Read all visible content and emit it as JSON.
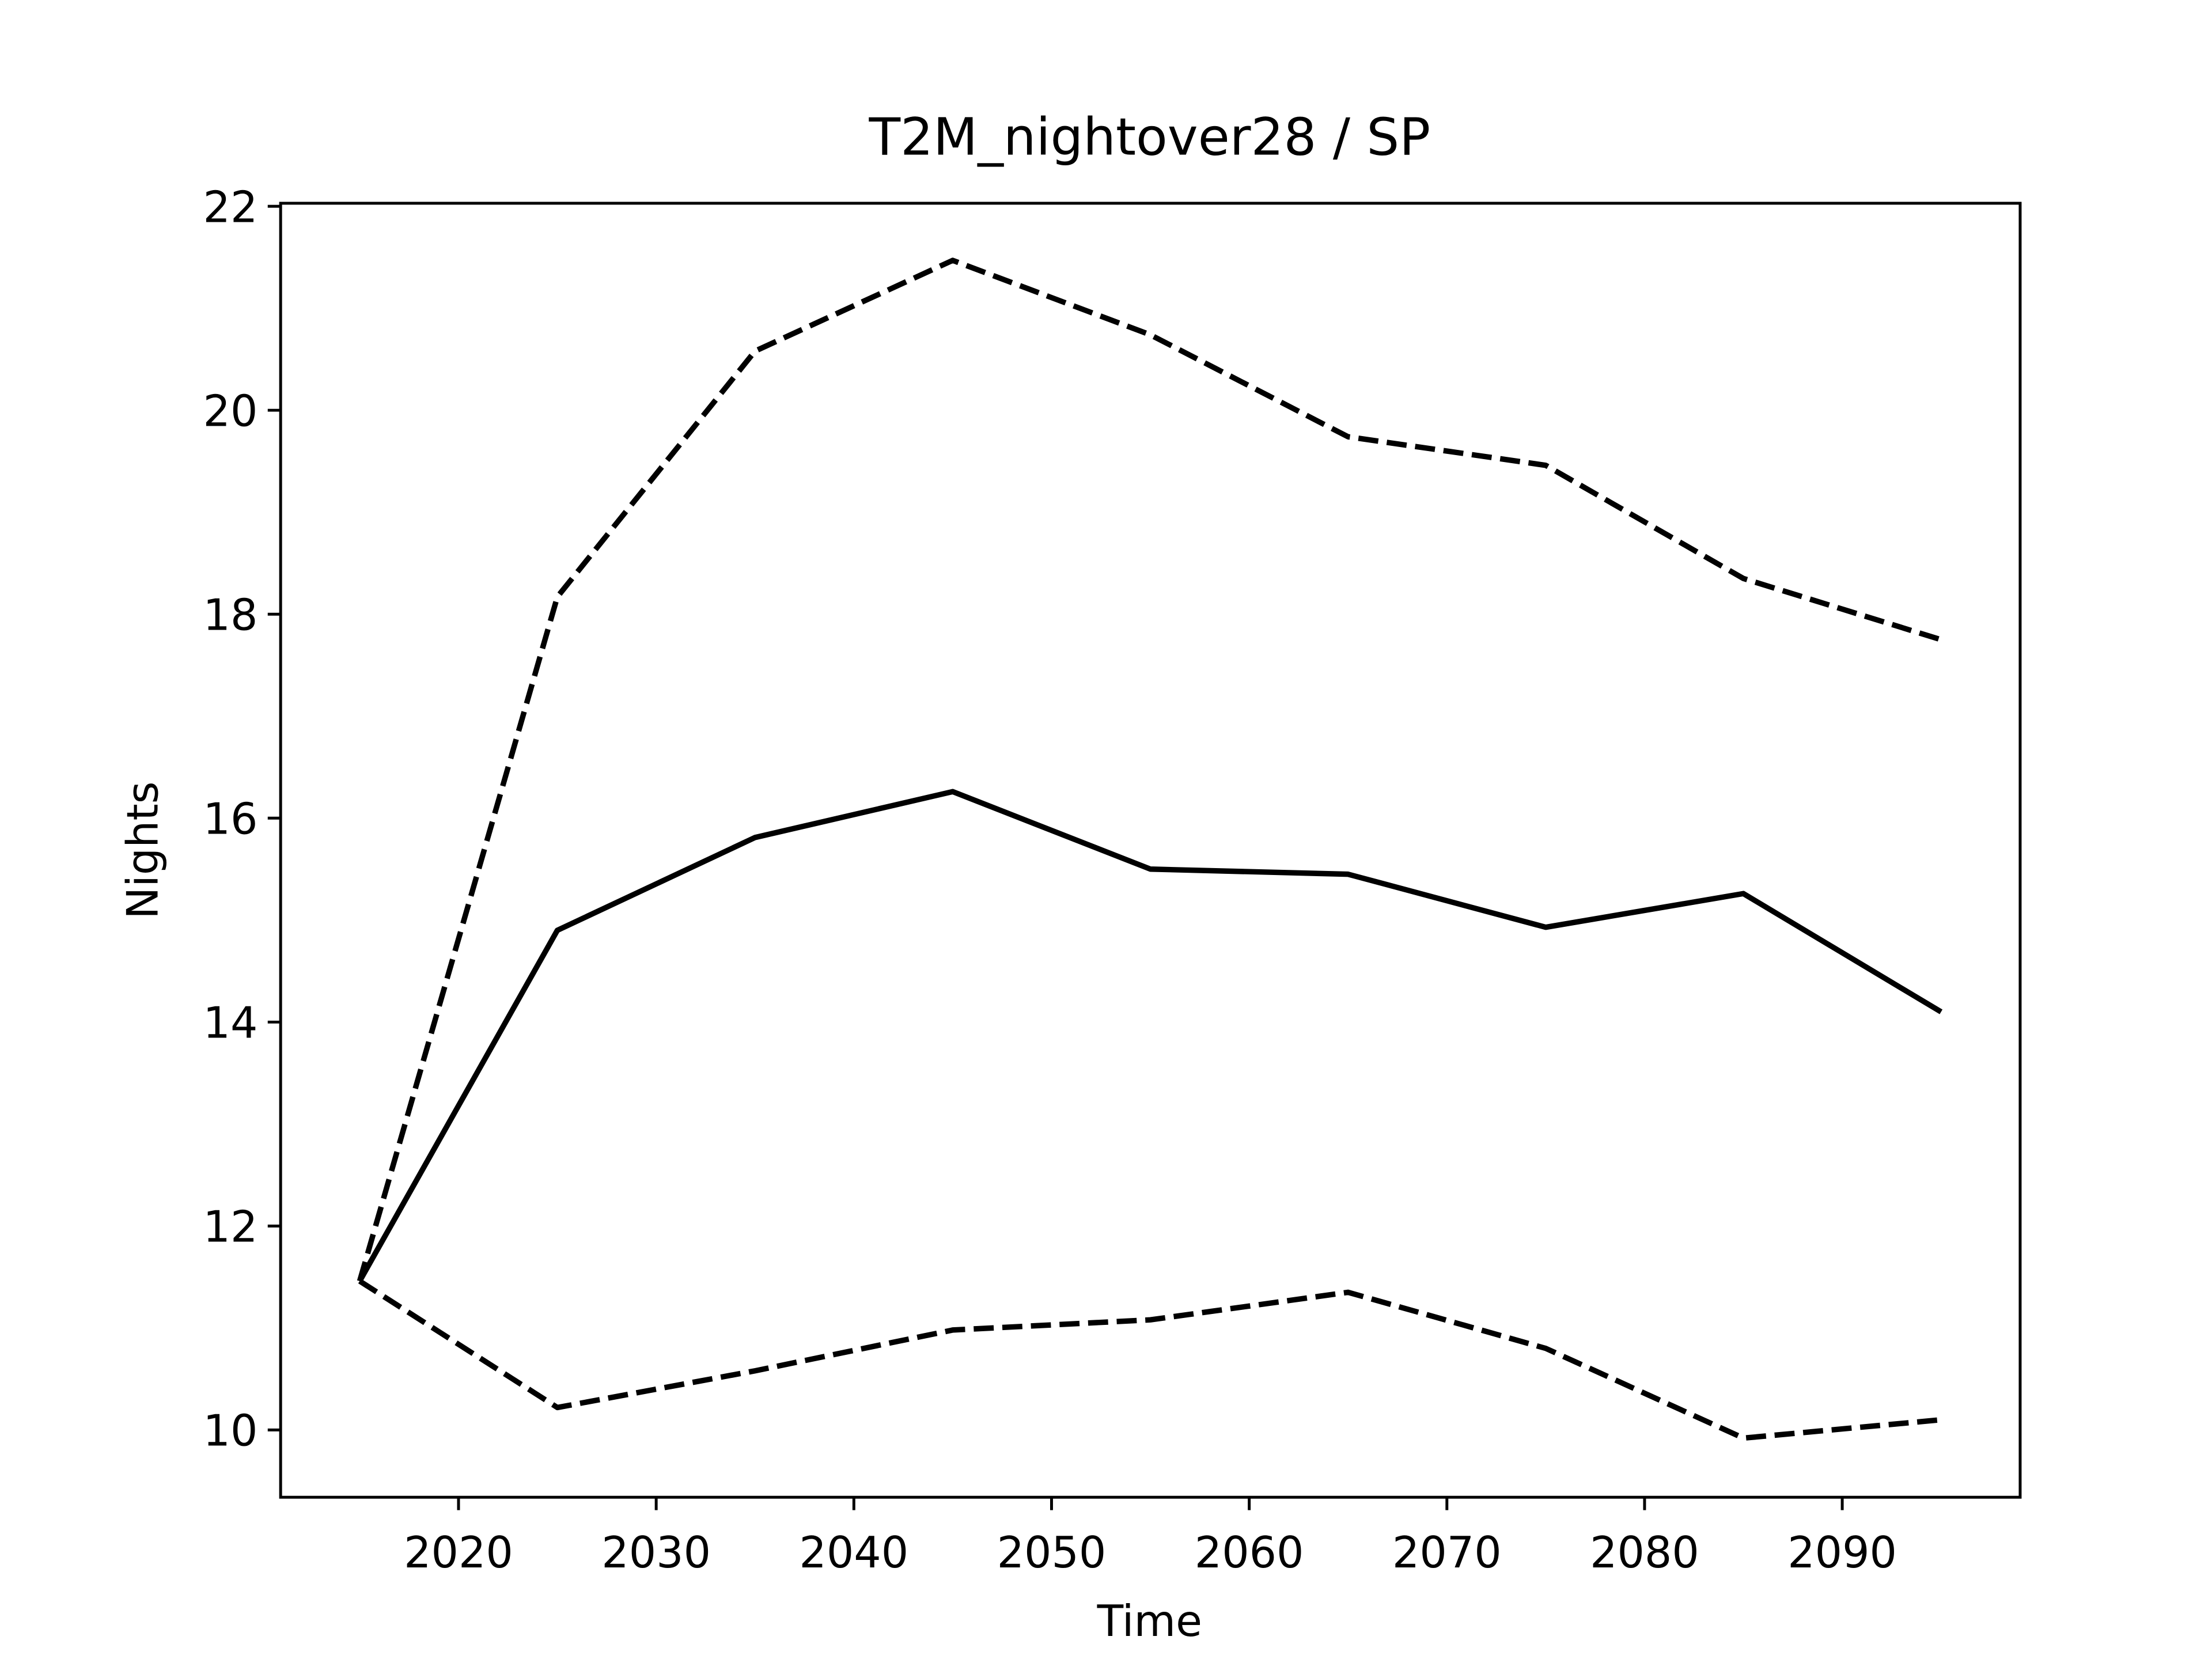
{
  "chart_data": {
    "type": "line",
    "title": "T2M_nightover28 / SP",
    "xlabel": "Time",
    "ylabel": "Nights",
    "x": [
      2015,
      2025,
      2035,
      2045,
      2055,
      2065,
      2075,
      2085,
      2095
    ],
    "series": [
      {
        "color": "#000000",
        "linestyle": "solid",
        "values": [
          11.46,
          14.9,
          15.81,
          16.26,
          15.5,
          15.45,
          14.93,
          15.26,
          14.1
        ]
      },
      {
        "color": "#000000",
        "linestyle": "dashed",
        "values": [
          11.46,
          18.17,
          20.58,
          21.47,
          20.74,
          19.74,
          19.46,
          18.35,
          17.75
        ]
      },
      {
        "color": "#000000",
        "linestyle": "dashed",
        "values": [
          11.46,
          10.22,
          10.58,
          10.98,
          11.08,
          11.35,
          10.8,
          9.92,
          10.1
        ]
      }
    ],
    "xlim": [
      2011,
      2099
    ],
    "xticks": [
      2020,
      2030,
      2040,
      2050,
      2060,
      2070,
      2080,
      2090
    ],
    "ylim": [
      9.34,
      22.03
    ],
    "yticks": [
      10,
      12,
      14,
      16,
      18,
      20,
      22
    ],
    "grid": false
  }
}
